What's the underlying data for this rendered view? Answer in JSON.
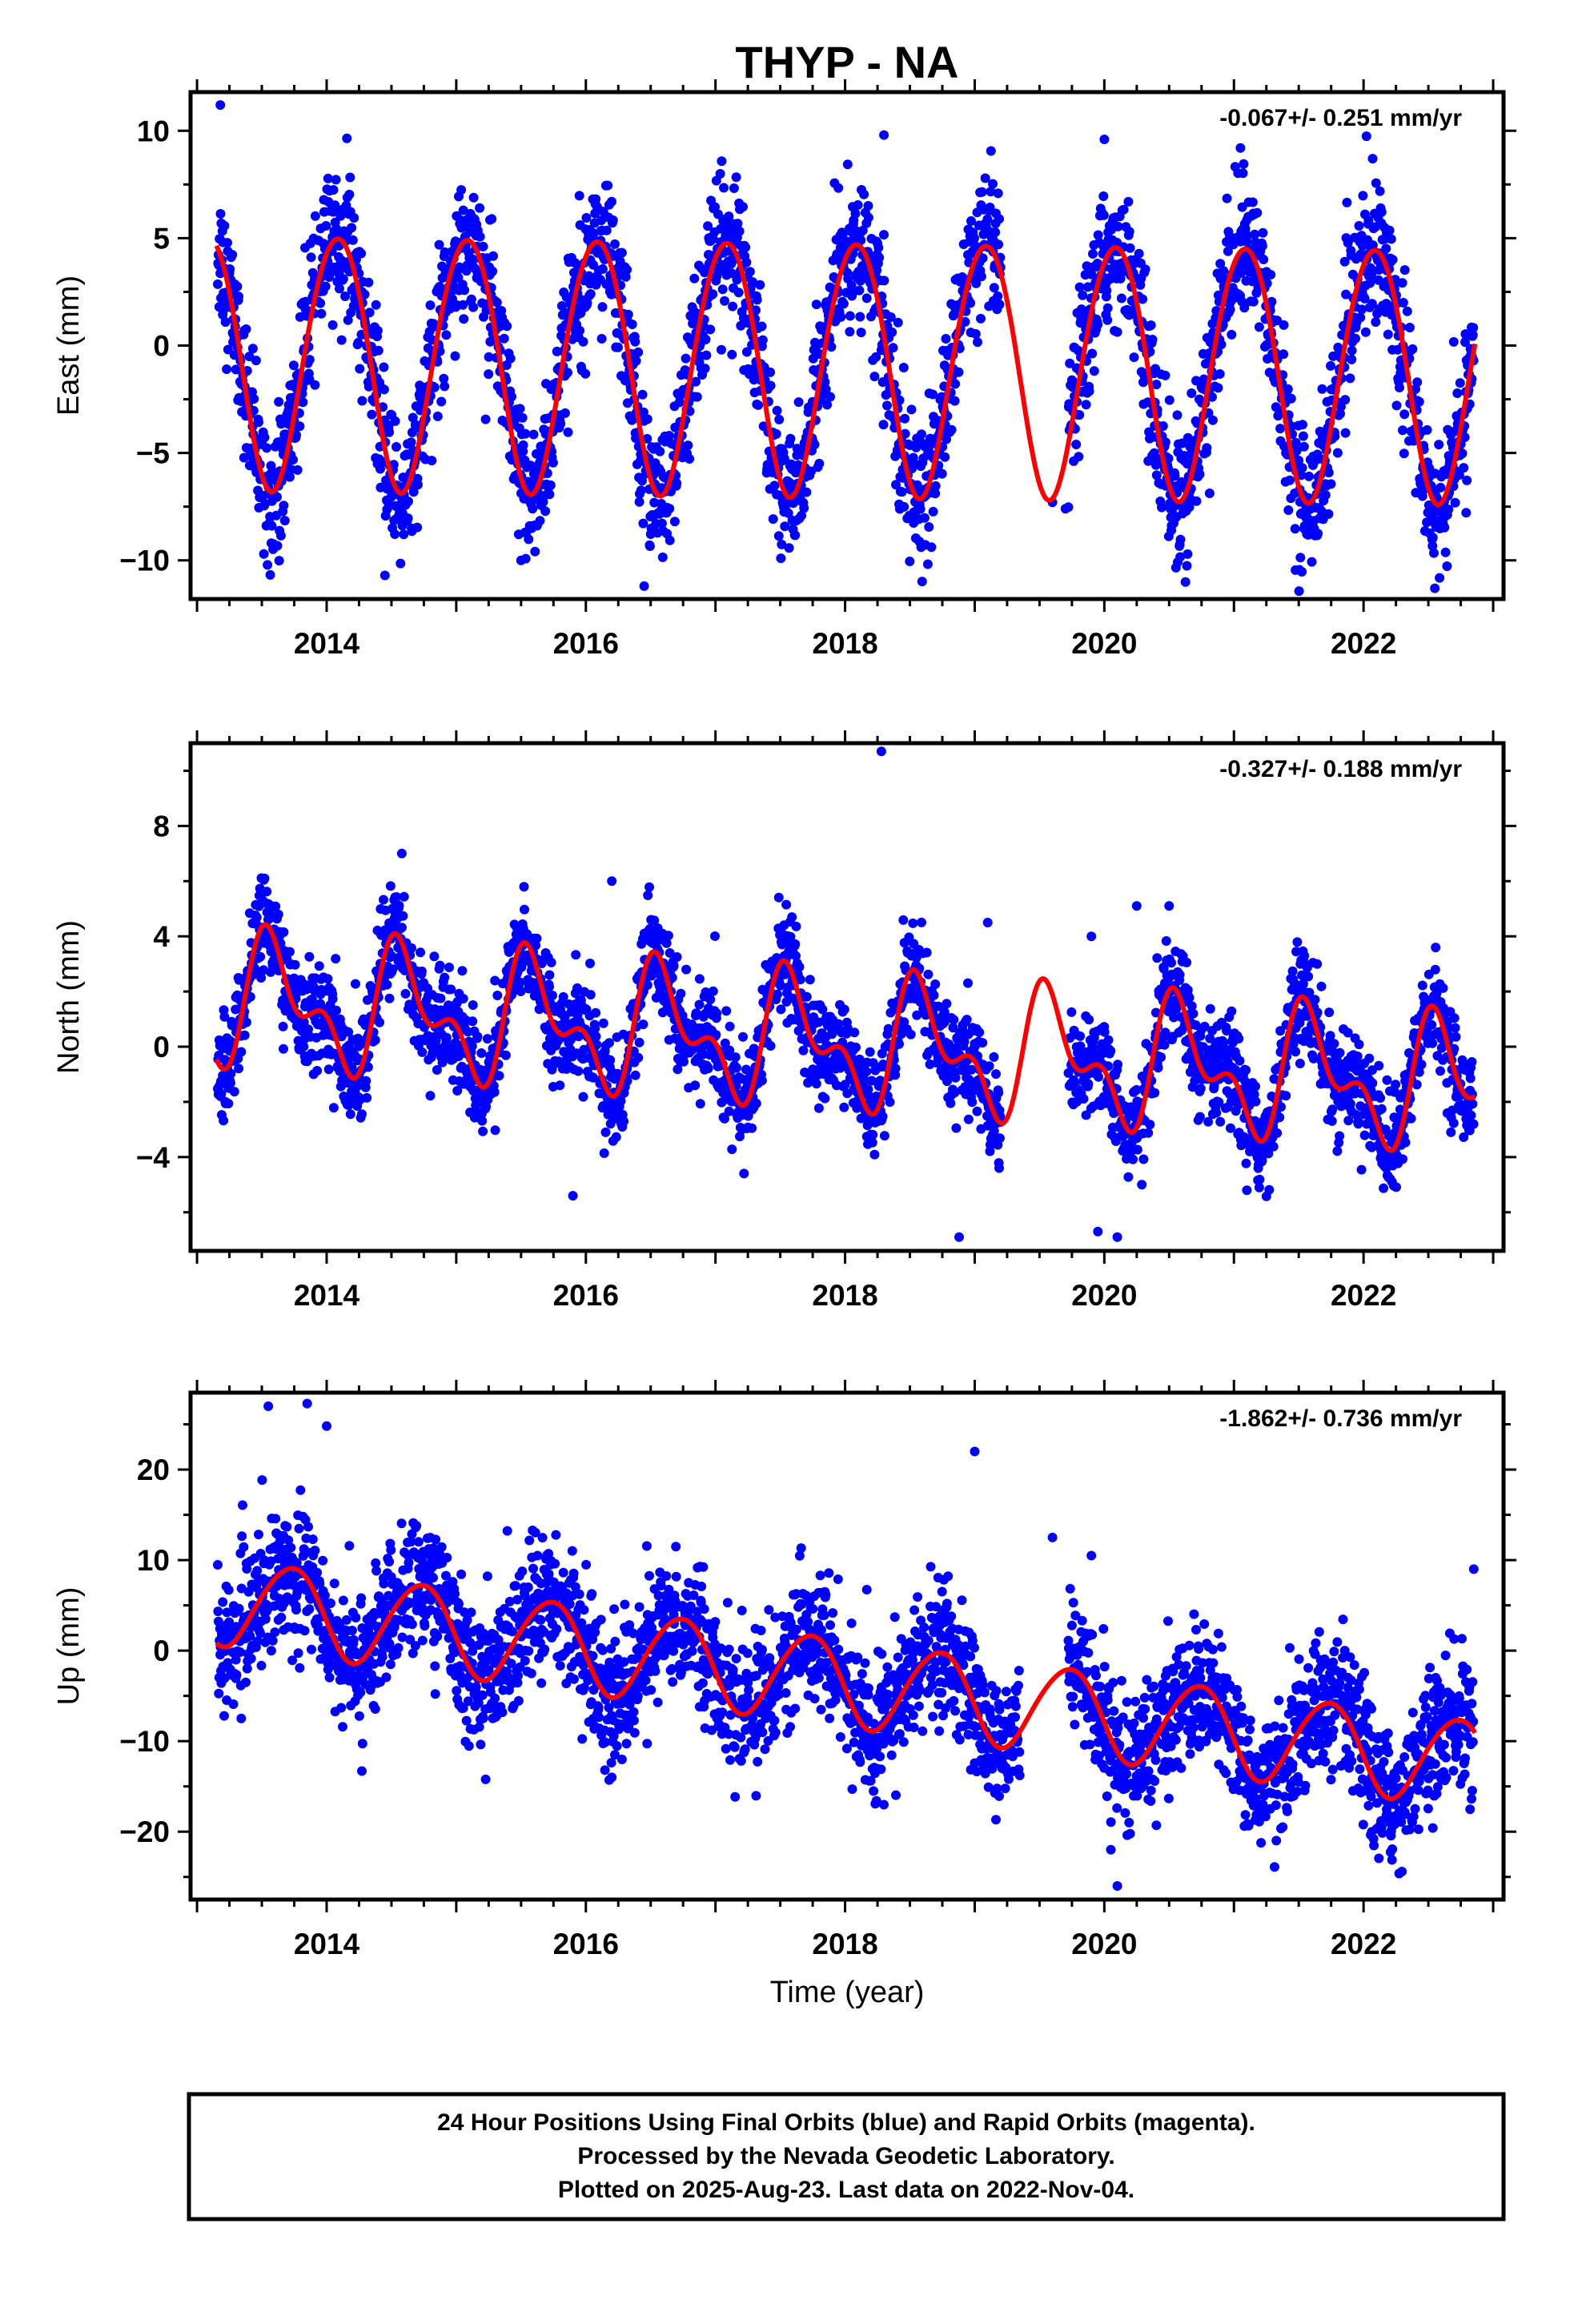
{
  "title": "THYP - NA",
  "footer": {
    "lines": [
      "24 Hour Positions Using Final Orbits (blue) and Rapid Orbits (magenta).",
      "Processed by the Nevada Geodetic Laboratory.",
      "Plotted on 2025-Aug-23. Last data on 2022-Nov-04."
    ]
  },
  "chart_data": [
    {
      "type": "scatter",
      "ylabel": "East (mm)",
      "xlabel": "",
      "rate": "-0.067+/- 0.251 mm/yr",
      "xlim": [
        2012.95,
        2023.08
      ],
      "ylim": [
        -11.8,
        11.8
      ],
      "xticks": [
        2014,
        2016,
        2018,
        2020,
        2022
      ],
      "yticks": [
        -10,
        -5,
        0,
        5,
        10
      ],
      "ytick_labels": [
        "−10",
        "−5",
        "0",
        "5",
        "10"
      ],
      "grid": false,
      "colors": {
        "points": "#0000ff",
        "model": "#ff0000"
      },
      "model": {
        "offset": -0.6,
        "trend": -0.067,
        "annual_amp": 5.9,
        "annual_peak": 2014.08,
        "semiannual_amp": 0.3,
        "semiannual_peak": 2014.3
      },
      "scatter_noise": 1.6,
      "gaps": [
        [
          2019.2,
          2019.72
        ]
      ],
      "outliers": [
        [
          2013.18,
          11.2
        ],
        [
          2018.3,
          9.8
        ],
        [
          2020.0,
          9.6
        ],
        [
          2021.05,
          9.2
        ],
        [
          2022.07,
          8.7
        ],
        [
          2014.45,
          -10.7
        ],
        [
          2016.45,
          -11.2
        ],
        [
          2022.55,
          -11.3
        ],
        [
          2015.5,
          -10.0
        ],
        [
          2019.6,
          -7.3
        ],
        [
          2019.7,
          -7.6
        ]
      ]
    },
    {
      "type": "scatter",
      "ylabel": "North (mm)",
      "xlabel": "",
      "rate": "-0.327+/- 0.188 mm/yr",
      "xlim": [
        2012.95,
        2023.08
      ],
      "ylim": [
        -7.4,
        11.0
      ],
      "xticks": [
        2014,
        2016,
        2018,
        2020,
        2022
      ],
      "yticks": [
        -4,
        0,
        4,
        8
      ],
      "ytick_labels": [
        "−4",
        "0",
        "4",
        "8"
      ],
      "grid": false,
      "colors": {
        "points": "#0000ff",
        "model": "#ff0000"
      },
      "model": {
        "offset": 1.7,
        "trend": -0.327,
        "annual_amp": 1.9,
        "annual_peak": 2013.6,
        "semiannual_amp": 1.2,
        "semiannual_peak": 2013.5
      },
      "scatter_noise": 0.9,
      "gaps": [
        [
          2019.2,
          2019.72
        ]
      ],
      "outliers": [
        [
          2018.28,
          10.7
        ],
        [
          2014.58,
          7.0
        ],
        [
          2018.88,
          -6.9
        ],
        [
          2020.1,
          -6.9
        ],
        [
          2019.95,
          -6.7
        ],
        [
          2015.9,
          -5.4
        ],
        [
          2021.1,
          -5.2
        ],
        [
          2019.1,
          4.5
        ],
        [
          2019.9,
          4.0
        ],
        [
          2020.25,
          5.1
        ],
        [
          2020.5,
          5.1
        ],
        [
          2016.2,
          6.0
        ]
      ]
    },
    {
      "type": "scatter",
      "ylabel": "Up (mm)",
      "xlabel": "Time (year)",
      "rate": "-1.862+/- 0.736 mm/yr",
      "xlim": [
        2012.95,
        2023.08
      ],
      "ylim": [
        -27.5,
        28.5
      ],
      "xticks": [
        2014,
        2016,
        2018,
        2020,
        2022
      ],
      "yticks": [
        -20,
        -10,
        0,
        10,
        20
      ],
      "ytick_labels": [
        "−20",
        "−10",
        "0",
        "10",
        "20"
      ],
      "grid": false,
      "colors": {
        "points": "#0000ff",
        "model": "#ff0000"
      },
      "model": {
        "offset": 5.5,
        "trend": -1.862,
        "annual_amp": 4.8,
        "annual_peak": 2013.72,
        "semiannual_amp": 0.4,
        "semiannual_peak": 2013.9
      },
      "scatter_noise": 3.6,
      "gaps": [
        [
          2019.35,
          2019.72
        ]
      ],
      "outliers": [
        [
          2013.55,
          27.0
        ],
        [
          2013.85,
          27.3
        ],
        [
          2014.0,
          24.8
        ],
        [
          2019.0,
          22.0
        ],
        [
          2020.1,
          -26.0
        ],
        [
          2020.05,
          -22.0
        ],
        [
          2019.6,
          12.5
        ],
        [
          2019.9,
          10.5
        ],
        [
          2022.85,
          9.0
        ],
        [
          2016.2,
          -14.0
        ],
        [
          2013.3,
          -1.0
        ]
      ]
    }
  ]
}
